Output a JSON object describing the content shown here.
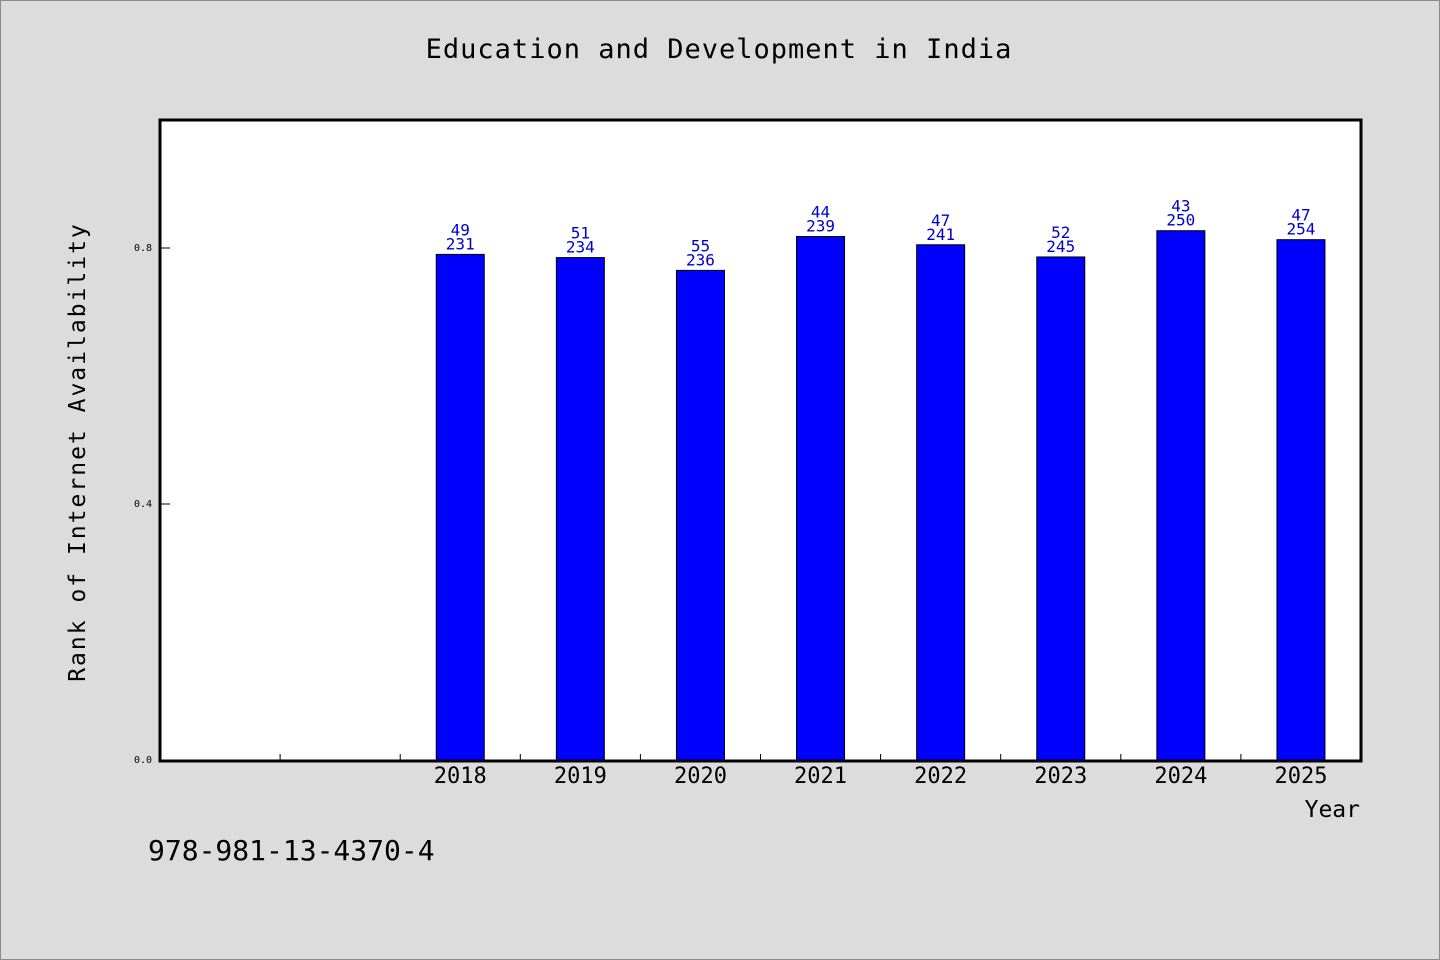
{
  "chart_data": {
    "type": "bar",
    "title": "Education and Development in India",
    "xlabel": "Year",
    "ylabel": "Rank of Internet Availability",
    "categories": [
      "2018",
      "2019",
      "2020",
      "2021",
      "2022",
      "2023",
      "2024",
      "2025"
    ],
    "values": [
      0.79,
      0.785,
      0.765,
      0.818,
      0.805,
      0.786,
      0.827,
      0.813
    ],
    "label_top": [
      "49",
      "51",
      "55",
      "44",
      "47",
      "52",
      "43",
      "47"
    ],
    "label_bottom": [
      "231",
      "234",
      "236",
      "239",
      "241",
      "245",
      "250",
      "254"
    ],
    "yticks": [
      "0.0",
      "0.4",
      "0.8"
    ],
    "ytick_values": [
      0.0,
      0.4,
      0.8
    ],
    "ylim": [
      0,
      1.0
    ],
    "grid": false,
    "colors": {
      "bar": "#0000ff",
      "label": "#0000cc",
      "background": "#dcdcdc",
      "plot_area": "#ffffff"
    }
  },
  "footer": {
    "isbn": "978-981-13-4370-4"
  }
}
